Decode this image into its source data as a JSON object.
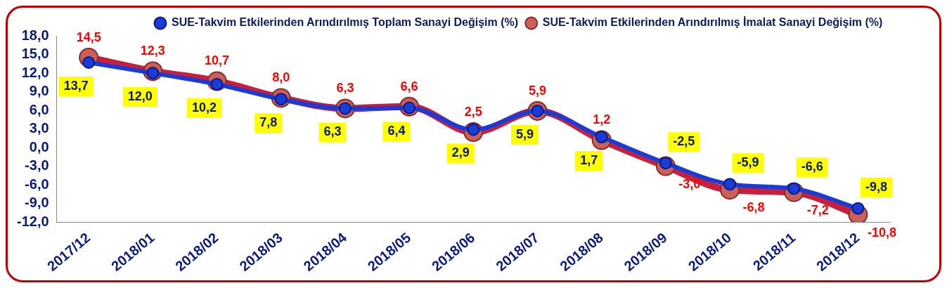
{
  "chart_data": {
    "type": "line",
    "categories": [
      "2017/12",
      "2018/01",
      "2018/02",
      "2018/03",
      "2018/04",
      "2018/05",
      "2018/06",
      "2018/07",
      "2018/08",
      "2018/09",
      "2018/10",
      "2018/11",
      "2018/12"
    ],
    "series": [
      {
        "name": "SUE-Takvim Etkilerinden Arındırılmış Toplam Sanayi Değişim (%)",
        "color": "#1a3cd6",
        "values": [
          13.7,
          12.0,
          10.2,
          7.8,
          6.3,
          6.4,
          2.9,
          5.9,
          1.7,
          -2.5,
          -5.9,
          -6.6,
          -9.8
        ],
        "value_labels": [
          "13,7",
          "12,0",
          "10,2",
          "7,8",
          "6,3",
          "6,4",
          "2,9",
          "5,9",
          "1,7",
          "-2,5",
          "-5,9",
          "-6,6",
          "-9,8"
        ]
      },
      {
        "name": "SUE-Takvim Etkilerinden Arındırılmış İmalat Sanayi Değişim (%)",
        "color": "#c8203c",
        "values": [
          14.5,
          12.3,
          10.7,
          8.0,
          6.3,
          6.6,
          2.5,
          5.9,
          1.2,
          -3.0,
          -6.8,
          -7.2,
          -10.8
        ],
        "value_labels": [
          "14,5",
          "12,3",
          "10,7",
          "8,0",
          "6,3",
          "6,6",
          "2,5",
          "5,9",
          "1,2",
          "-3,0",
          "-6,8",
          "-7,2",
          "-10,8"
        ]
      }
    ],
    "ylim": [
      -12,
      18
    ],
    "yticks": [
      {
        "value": -12,
        "label": "-12,0"
      },
      {
        "value": -9,
        "label": "-9,0"
      },
      {
        "value": -6,
        "label": "-6,0"
      },
      {
        "value": -3,
        "label": "-3,0"
      },
      {
        "value": 0,
        "label": "0,0"
      },
      {
        "value": 3,
        "label": "3,0"
      },
      {
        "value": 6,
        "label": "6,0"
      },
      {
        "value": 9,
        "label": "9,0"
      },
      {
        "value": 12,
        "label": "12,0"
      },
      {
        "value": 15,
        "label": "15,0"
      },
      {
        "value": 18,
        "label": "18,0"
      }
    ],
    "legend": "top right",
    "marker": "circle",
    "grid": false
  }
}
